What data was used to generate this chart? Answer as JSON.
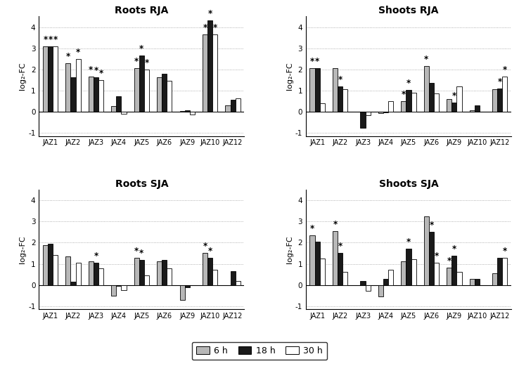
{
  "categories": [
    "JAZ1",
    "JAZ2",
    "JAZ3",
    "JAZ4",
    "JAZ5",
    "JAZ6",
    "JAZ9",
    "JAZ10",
    "JAZ12"
  ],
  "colors": {
    "6h": "#b8b8b8",
    "18h": "#1a1a1a",
    "30h": "#ffffff"
  },
  "bar_edge": "#000000",
  "ylim": [
    -1.15,
    4.5
  ],
  "yticks": [
    -1,
    0,
    1,
    2,
    3,
    4
  ],
  "ytick_labels": [
    "-1",
    "0",
    "1",
    "2",
    "3",
    "4"
  ],
  "ylabel": "log₂-FC",
  "grid_color": "#999999",
  "subplots": [
    {
      "title": "Roots RJA",
      "data_6h": [
        3.1,
        2.3,
        1.65,
        0.28,
        2.05,
        1.62,
        0.02,
        3.65,
        0.3
      ],
      "data_18h": [
        3.1,
        1.62,
        1.62,
        0.72,
        2.65,
        1.8,
        0.07,
        4.3,
        0.55
      ],
      "data_30h": [
        3.1,
        2.48,
        1.5,
        -0.1,
        2.0,
        1.45,
        -0.15,
        3.65,
        0.62
      ],
      "stars_6h": [
        true,
        true,
        true,
        false,
        true,
        false,
        false,
        true,
        false
      ],
      "stars_18h": [
        true,
        false,
        true,
        false,
        true,
        false,
        false,
        true,
        false
      ],
      "stars_30h": [
        true,
        true,
        true,
        false,
        true,
        false,
        false,
        true,
        false
      ]
    },
    {
      "title": "Shoots RJA",
      "data_6h": [
        2.05,
        2.05,
        0.0,
        -0.08,
        0.48,
        2.15,
        0.58,
        0.05,
        1.05
      ],
      "data_18h": [
        2.05,
        1.2,
        -0.75,
        -0.05,
        1.02,
        1.35,
        0.42,
        0.3,
        1.1
      ],
      "data_30h": [
        0.38,
        1.05,
        -0.18,
        0.48,
        0.88,
        0.85,
        1.18,
        0.0,
        1.65
      ],
      "stars_6h": [
        true,
        false,
        false,
        false,
        true,
        true,
        false,
        false,
        false
      ],
      "stars_18h": [
        true,
        true,
        false,
        false,
        true,
        false,
        true,
        false,
        true
      ],
      "stars_30h": [
        false,
        false,
        false,
        false,
        false,
        false,
        false,
        false,
        true
      ]
    },
    {
      "title": "Roots SJA",
      "data_6h": [
        1.88,
        1.35,
        1.1,
        -0.5,
        1.28,
        1.12,
        -0.7,
        1.52,
        0.0
      ],
      "data_18h": [
        1.95,
        0.15,
        1.05,
        -0.05,
        1.18,
        1.18,
        -0.12,
        1.28,
        0.65
      ],
      "data_30h": [
        1.4,
        1.05,
        0.78,
        -0.25,
        0.45,
        0.78,
        0.0,
        0.72,
        0.18
      ],
      "stars_6h": [
        false,
        false,
        false,
        false,
        true,
        false,
        false,
        true,
        false
      ],
      "stars_18h": [
        false,
        false,
        true,
        false,
        true,
        false,
        false,
        true,
        false
      ],
      "stars_30h": [
        false,
        false,
        false,
        false,
        false,
        false,
        false,
        false,
        false
      ]
    },
    {
      "title": "Shoots SJA",
      "data_6h": [
        2.35,
        2.55,
        0.0,
        -0.55,
        1.12,
        3.25,
        0.82,
        0.3,
        0.55
      ],
      "data_18h": [
        2.05,
        1.52,
        0.2,
        0.3,
        1.7,
        2.5,
        1.38,
        0.3,
        1.28
      ],
      "data_30h": [
        1.25,
        0.62,
        -0.28,
        0.72,
        1.2,
        1.05,
        0.62,
        0.0,
        1.28
      ],
      "stars_6h": [
        true,
        true,
        false,
        false,
        false,
        false,
        true,
        false,
        false
      ],
      "stars_18h": [
        false,
        true,
        false,
        false,
        true,
        true,
        true,
        false,
        false
      ],
      "stars_30h": [
        false,
        false,
        false,
        false,
        false,
        true,
        false,
        false,
        true
      ]
    }
  ],
  "legend_labels": [
    "6 h",
    "18 h",
    "30 h"
  ]
}
